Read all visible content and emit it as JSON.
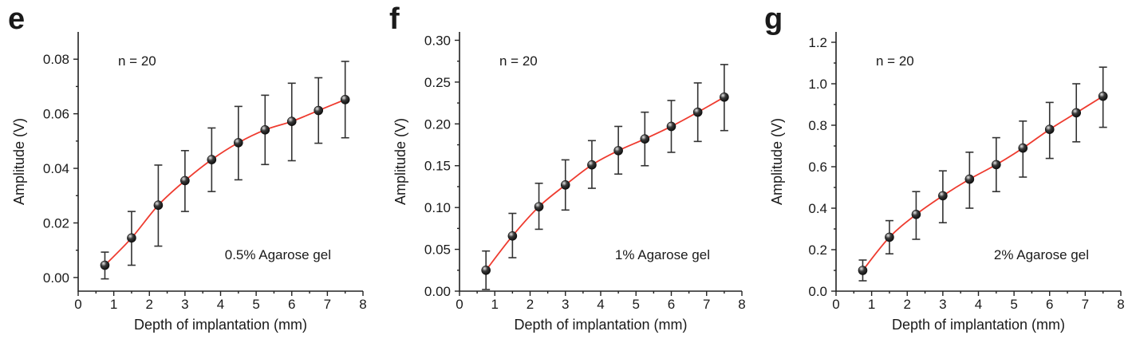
{
  "chart_data": [
    {
      "type": "scatter",
      "panel_label": "e",
      "xlabel": "Depth of implantation (mm)",
      "ylabel": "Amplitude (V)",
      "xlim": [
        0,
        8
      ],
      "ylim": [
        -0.005,
        0.09
      ],
      "x_ticks": [
        "0",
        "1",
        "2",
        "3",
        "4",
        "5",
        "6",
        "7",
        "8"
      ],
      "y_ticks": [
        "0.00",
        "0.02",
        "0.04",
        "0.06",
        "0.08"
      ],
      "y_tick_values": [
        0.0,
        0.02,
        0.04,
        0.06,
        0.08
      ],
      "annotations": {
        "n": "n = 20",
        "medium": "0.5% Agarose gel"
      },
      "colors": {
        "fit_line": "#ee3b2f",
        "marker": "#3a3a3a"
      },
      "x": [
        0.75,
        1.5,
        2.25,
        3.0,
        3.75,
        4.5,
        5.25,
        6.0,
        6.75,
        7.5
      ],
      "y": [
        0.0045,
        0.0145,
        0.0265,
        0.0355,
        0.0432,
        0.0494,
        0.0541,
        0.0572,
        0.0612,
        0.0652
      ],
      "err_low": [
        -0.0005,
        0.0045,
        0.0115,
        0.0242,
        0.0315,
        0.0358,
        0.0414,
        0.0428,
        0.0492,
        0.0512
      ],
      "err_high": [
        0.0093,
        0.0242,
        0.0412,
        0.0465,
        0.0548,
        0.0627,
        0.0668,
        0.0712,
        0.0732,
        0.0792
      ]
    },
    {
      "type": "scatter",
      "panel_label": "f",
      "xlabel": "Depth of implantation (mm)",
      "ylabel": "Amplitude (V)",
      "xlim": [
        0,
        8
      ],
      "ylim": [
        0,
        0.31
      ],
      "x_ticks": [
        "0",
        "1",
        "2",
        "3",
        "4",
        "5",
        "6",
        "7",
        "8"
      ],
      "y_ticks": [
        "0.00",
        "0.05",
        "0.10",
        "0.15",
        "0.20",
        "0.25",
        "0.30"
      ],
      "y_tick_values": [
        0.0,
        0.05,
        0.1,
        0.15,
        0.2,
        0.25,
        0.3
      ],
      "annotations": {
        "n": "n = 20",
        "medium": "1% Agarose gel"
      },
      "colors": {
        "fit_line": "#ee3b2f",
        "marker": "#3a3a3a"
      },
      "x": [
        0.75,
        1.5,
        2.25,
        3.0,
        3.75,
        4.5,
        5.25,
        6.0,
        6.75,
        7.5
      ],
      "y": [
        0.025,
        0.066,
        0.101,
        0.127,
        0.151,
        0.168,
        0.182,
        0.197,
        0.214,
        0.232
      ],
      "err_low": [
        0.002,
        0.04,
        0.074,
        0.097,
        0.123,
        0.14,
        0.15,
        0.166,
        0.179,
        0.192
      ],
      "err_high": [
        0.048,
        0.093,
        0.129,
        0.157,
        0.18,
        0.197,
        0.214,
        0.228,
        0.249,
        0.271
      ]
    },
    {
      "type": "scatter",
      "panel_label": "g",
      "xlabel": "Depth of implantation (mm)",
      "ylabel": "Amplitude (V)",
      "xlim": [
        0,
        8
      ],
      "ylim": [
        0,
        1.25
      ],
      "x_ticks": [
        "0",
        "1",
        "2",
        "3",
        "4",
        "5",
        "6",
        "7",
        "8"
      ],
      "y_ticks": [
        "0.0",
        "0.2",
        "0.4",
        "0.6",
        "0.8",
        "1.0",
        "1.2"
      ],
      "y_tick_values": [
        0.0,
        0.2,
        0.4,
        0.6,
        0.8,
        1.0,
        1.2
      ],
      "annotations": {
        "n": "n = 20",
        "medium": "2% Agarose gel"
      },
      "colors": {
        "fit_line": "#ee3b2f",
        "marker": "#3a3a3a"
      },
      "x": [
        0.75,
        1.5,
        2.25,
        3.0,
        3.75,
        4.5,
        5.25,
        6.0,
        6.75,
        7.5
      ],
      "y": [
        0.1,
        0.26,
        0.37,
        0.46,
        0.54,
        0.61,
        0.69,
        0.78,
        0.86,
        0.94
      ],
      "err_low": [
        0.05,
        0.18,
        0.25,
        0.33,
        0.4,
        0.48,
        0.55,
        0.64,
        0.72,
        0.79
      ],
      "err_high": [
        0.15,
        0.34,
        0.48,
        0.58,
        0.67,
        0.74,
        0.82,
        0.91,
        1.0,
        1.08
      ]
    }
  ]
}
